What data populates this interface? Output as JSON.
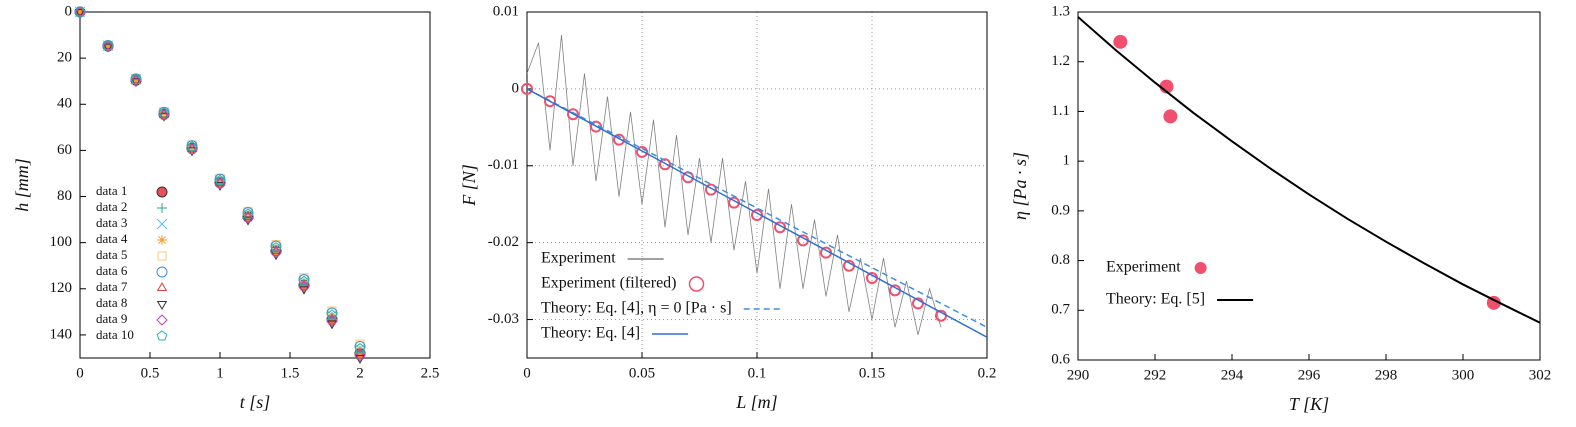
{
  "chart_data": [
    {
      "type": "scatter",
      "xlabel": "t [s]",
      "ylabel": "h [mm]",
      "xlim": [
        0,
        2.5
      ],
      "xticks": [
        0,
        0.5,
        1,
        1.5,
        2,
        2.5
      ],
      "ylim": [
        0,
        150
      ],
      "yticks": [
        0,
        20,
        40,
        60,
        80,
        100,
        120,
        140
      ],
      "y_inverted": true,
      "grid": false,
      "legend": "lower left",
      "x": [
        0,
        0.2,
        0.4,
        0.6,
        0.8,
        1.0,
        1.2,
        1.4,
        1.6,
        1.8,
        2.0
      ],
      "series": [
        {
          "name": "data 1",
          "color": "#e8505b",
          "marker": "filled-circle",
          "values": [
            0,
            14.8,
            29.6,
            44.4,
            59.2,
            74,
            88.8,
            103.6,
            118.4,
            133.2,
            148
          ]
        },
        {
          "name": "data 2",
          "color": "#2aa88e",
          "marker": "plus",
          "values": [
            0,
            14.7,
            29.4,
            44.1,
            58.8,
            73.5,
            88.2,
            102.9,
            117.6,
            132.3,
            147
          ]
        },
        {
          "name": "data 3",
          "color": "#5bbde8",
          "marker": "cross",
          "values": [
            0,
            14.6,
            29.2,
            43.8,
            58.4,
            73,
            87.6,
            102.2,
            116.8,
            131.4,
            146
          ]
        },
        {
          "name": "data 4",
          "color": "#f0a030",
          "marker": "star",
          "values": [
            0,
            14.9,
            29.8,
            44.7,
            59.6,
            74.5,
            89.4,
            104.3,
            119.2,
            134.1,
            149
          ]
        },
        {
          "name": "data 5",
          "color": "#f5cf7a",
          "marker": "square",
          "values": [
            0,
            14.4,
            28.8,
            43.2,
            57.6,
            72,
            86.4,
            100.8,
            115.2,
            129.6,
            144
          ]
        },
        {
          "name": "data 6",
          "color": "#3d8fd1",
          "marker": "circle",
          "values": [
            0,
            14.5,
            29,
            43.5,
            58,
            72.5,
            87,
            101.5,
            116,
            130.5,
            145
          ]
        },
        {
          "name": "data 7",
          "color": "#e04040",
          "marker": "triangle",
          "values": [
            0,
            14.8,
            29.6,
            44.4,
            59.2,
            74,
            88.8,
            103.6,
            118.4,
            133.2,
            148
          ]
        },
        {
          "name": "data 8",
          "color": "#333333",
          "marker": "triangle-down",
          "values": [
            0,
            15,
            30,
            45,
            60,
            75,
            90,
            105,
            120,
            135,
            150
          ]
        },
        {
          "name": "data 9",
          "color": "#c040c0",
          "marker": "diamond",
          "values": [
            0,
            14.9,
            29.8,
            44.7,
            59.6,
            74.5,
            89.4,
            104.3,
            119.2,
            134.1,
            149
          ]
        },
        {
          "name": "data 10",
          "color": "#30b0a0",
          "marker": "pentagon",
          "values": [
            0,
            14.6,
            29.2,
            43.8,
            58.4,
            73,
            87.6,
            102.2,
            116.8,
            131.4,
            146
          ]
        }
      ]
    },
    {
      "type": "line",
      "xlabel": "L [m]",
      "ylabel": "F [N]",
      "xlim": [
        0,
        0.2
      ],
      "xticks": [
        0,
        0.05,
        0.1,
        0.15,
        0.2
      ],
      "ylim": [
        -0.035,
        0.01
      ],
      "yticks": [
        0.01,
        0,
        -0.01,
        -0.02,
        -0.03
      ],
      "y_inverted": false,
      "grid": true,
      "legend": "lower left",
      "series": [
        {
          "name": "Experiment",
          "color": "#808080",
          "style": "solid",
          "x": [
            0,
            0.005,
            0.01,
            0.015,
            0.02,
            0.025,
            0.03,
            0.035,
            0.04,
            0.045,
            0.05,
            0.055,
            0.06,
            0.065,
            0.07,
            0.075,
            0.08,
            0.085,
            0.09,
            0.095,
            0.1,
            0.105,
            0.11,
            0.115,
            0.12,
            0.125,
            0.13,
            0.135,
            0.14,
            0.145,
            0.15,
            0.155,
            0.16,
            0.165,
            0.17,
            0.175,
            0.18
          ],
          "values": [
            0.002,
            0.006,
            -0.008,
            0.007,
            -0.01,
            0.002,
            -0.012,
            -0.001,
            -0.014,
            -0.003,
            -0.015,
            -0.004,
            -0.018,
            -0.006,
            -0.019,
            -0.009,
            -0.02,
            -0.009,
            -0.021,
            -0.012,
            -0.024,
            -0.013,
            -0.026,
            -0.015,
            -0.026,
            -0.017,
            -0.027,
            -0.019,
            -0.029,
            -0.022,
            -0.03,
            -0.022,
            -0.031,
            -0.025,
            -0.032,
            -0.026,
            -0.031
          ]
        },
        {
          "name": "Experiment (filtered)",
          "color": "#f0506e",
          "style": "markers",
          "x": [
            0,
            0.01,
            0.02,
            0.03,
            0.04,
            0.05,
            0.06,
            0.07,
            0.08,
            0.09,
            0.1,
            0.11,
            0.12,
            0.13,
            0.14,
            0.15,
            0.16,
            0.17,
            0.18
          ],
          "values": [
            0,
            -0.0016,
            -0.0033,
            -0.0049,
            -0.0066,
            -0.0082,
            -0.0098,
            -0.0115,
            -0.0131,
            -0.0148,
            -0.0164,
            -0.018,
            -0.0197,
            -0.0213,
            -0.023,
            -0.0246,
            -0.0262,
            -0.0279,
            -0.0295
          ]
        },
        {
          "name": "Theory: Eq. [4], η = 0 [Pa · s]",
          "color": "#3d8fe0",
          "style": "dashed",
          "x": [
            0,
            0.2
          ],
          "values": [
            0,
            -0.031
          ]
        },
        {
          "name": "Theory: Eq. [4]",
          "color": "#2f6fd0",
          "style": "solid",
          "x": [
            0,
            0.2
          ],
          "values": [
            0,
            -0.0323
          ]
        }
      ]
    },
    {
      "type": "line",
      "xlabel": "T [K]",
      "ylabel": "η [Pa · s]",
      "xlim": [
        290,
        302
      ],
      "xticks": [
        290,
        292,
        294,
        296,
        298,
        300,
        302
      ],
      "ylim": [
        0.6,
        1.3
      ],
      "yticks": [
        0.6,
        0.7,
        0.8,
        0.9,
        1,
        1.1,
        1.2,
        1.3
      ],
      "y_inverted": false,
      "grid": false,
      "legend": "lower left",
      "series": [
        {
          "name": "Experiment",
          "color": "#f0506e",
          "style": "dots",
          "x": [
            291.1,
            292.3,
            292.4,
            300.8
          ],
          "values": [
            1.24,
            1.15,
            1.09,
            0.715
          ]
        },
        {
          "name": "Theory: Eq. [5]",
          "color": "#000000",
          "style": "solid",
          "x": [
            290,
            291,
            292,
            293,
            294,
            295,
            296,
            297,
            298,
            299,
            300,
            301,
            302
          ],
          "values": [
            1.29,
            1.222,
            1.158,
            1.097,
            1.04,
            0.985,
            0.933,
            0.884,
            0.838,
            0.794,
            0.752,
            0.713,
            0.675
          ]
        }
      ]
    }
  ]
}
